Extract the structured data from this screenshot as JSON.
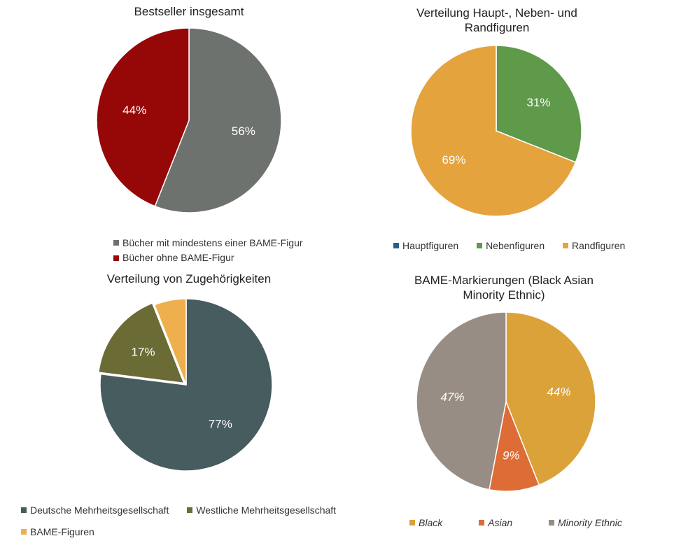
{
  "chart_data": [
    {
      "type": "pie",
      "title": "Bestseller insgesamt",
      "categories": [
        "Bücher mit mindestens einer BAME-Figur",
        "Bücher ohne BAME-Figur"
      ],
      "values": [
        56,
        44
      ],
      "labels": [
        "56%",
        "44%"
      ],
      "colors": [
        "#6e726f",
        "#960707"
      ],
      "legend": "bottom"
    },
    {
      "type": "pie",
      "title": "Verteilung Haupt-, Neben- und Randfiguren",
      "categories": [
        "Hauptfiguren",
        "Nebenfiguren",
        "Randfiguren"
      ],
      "values": [
        0,
        31,
        69
      ],
      "labels": [
        "",
        "31%",
        "69%"
      ],
      "colors": [
        "#2f5b8f",
        "#5e9a4a",
        "#e5a33e"
      ],
      "legend": "bottom"
    },
    {
      "type": "pie",
      "title": "Verteilung von Zugehörigkeiten",
      "categories": [
        "Deutsche Mehrheitsgesellschaft",
        "Westliche Mehrheitsgesellschaft",
        "BAME-Figuren"
      ],
      "values": [
        77,
        17,
        6
      ],
      "labels": [
        "77%",
        "17%",
        ""
      ],
      "colors": [
        "#465c5e",
        "#6b6b36",
        "#eeaf4c"
      ],
      "legend": "bottom"
    },
    {
      "type": "pie",
      "title": "BAME-Markierungen (Black Asian Minority Ethnic)",
      "categories": [
        "Black",
        "Asian",
        "Minority Ethnic"
      ],
      "values": [
        44,
        9,
        47
      ],
      "labels": [
        "44%",
        "9%",
        "47%"
      ],
      "colors": [
        "#dba23a",
        "#de6c37",
        "#978d84"
      ],
      "legend": "bottom"
    }
  ]
}
